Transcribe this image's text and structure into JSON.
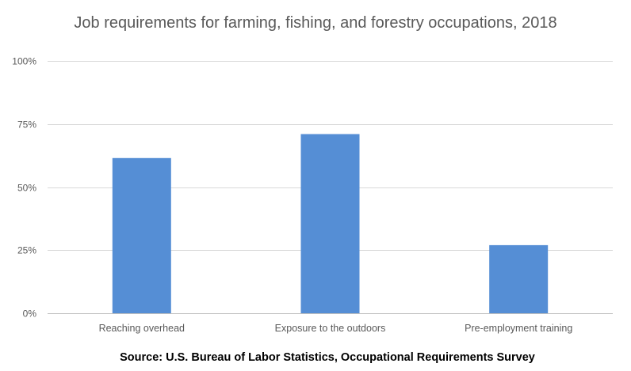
{
  "chart_data": {
    "type": "bar",
    "title": "Job requirements for farming, fishing, and forestry occupations, 2018",
    "source": "Source: U.S. Bureau of Labor Statistics, Occupational Requirements Survey",
    "categories": [
      "Reaching overhead",
      "Exposure to the outdoors",
      "Pre-employment training"
    ],
    "values": [
      61.5,
      71.0,
      27.0
    ],
    "unit": "%",
    "xlabel": "",
    "ylabel": "",
    "ylim": [
      0,
      100
    ],
    "yticks": [
      0,
      25,
      50,
      75,
      100
    ],
    "ytick_labels": [
      "0%",
      "25%",
      "50%",
      "75%",
      "100%"
    ],
    "grid": true,
    "legend": "none",
    "colors": {
      "bar": "#558ed5",
      "grid": "#d9d9d9",
      "text": "#595959"
    }
  }
}
